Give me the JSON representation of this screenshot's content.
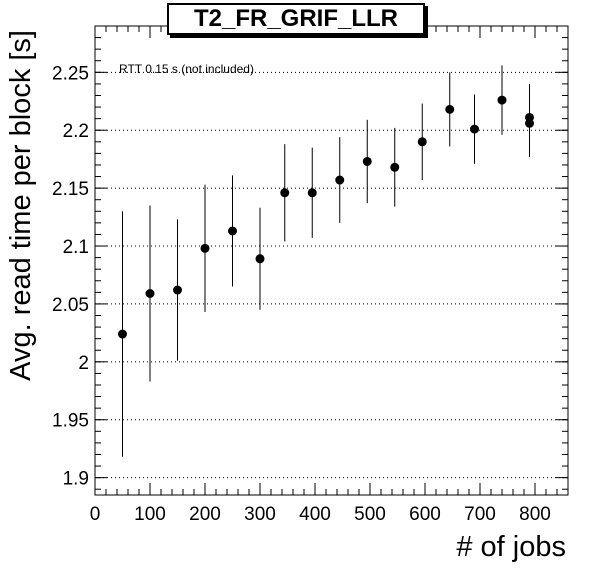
{
  "chart_data": {
    "type": "scatter",
    "title": "T2_FR_GRIF_LLR",
    "xlabel": "# of jobs",
    "ylabel": "Avg. read time per block [s]",
    "annotation": "RTT 0.15 s (not included)",
    "xlim": [
      0,
      860
    ],
    "ylim": [
      1.885,
      2.29
    ],
    "xticks": [
      0,
      100,
      200,
      300,
      400,
      500,
      600,
      700,
      800
    ],
    "yticks": [
      1.9,
      1.95,
      2,
      2.05,
      2.1,
      2.15,
      2.2,
      2.25
    ],
    "ytick_labels": [
      "1.9",
      "1.95",
      "2",
      "2.05",
      "2.1",
      "2.15",
      "2.2",
      "2.25"
    ],
    "grid": "horizontal dotted",
    "points": [
      {
        "x": 50,
        "y": 2.024,
        "err": 0.106
      },
      {
        "x": 100,
        "y": 2.059,
        "err": 0.076
      },
      {
        "x": 150,
        "y": 2.062,
        "err": 0.061
      },
      {
        "x": 200,
        "y": 2.098,
        "err": 0.055
      },
      {
        "x": 250,
        "y": 2.113,
        "err": 0.048
      },
      {
        "x": 300,
        "y": 2.089,
        "err": 0.044
      },
      {
        "x": 345,
        "y": 2.146,
        "err": 0.042
      },
      {
        "x": 395,
        "y": 2.146,
        "err": 0.039
      },
      {
        "x": 445,
        "y": 2.157,
        "err": 0.037
      },
      {
        "x": 495,
        "y": 2.173,
        "err": 0.036
      },
      {
        "x": 545,
        "y": 2.168,
        "err": 0.034
      },
      {
        "x": 595,
        "y": 2.19,
        "err": 0.033
      },
      {
        "x": 645,
        "y": 2.218,
        "err": 0.032
      },
      {
        "x": 690,
        "y": 2.201,
        "err": 0.03
      },
      {
        "x": 740,
        "y": 2.226,
        "err": 0.03
      },
      {
        "x": 790,
        "y": 2.211,
        "err": 0.029
      },
      {
        "x": 790,
        "y": 2.206,
        "err": 0.029
      }
    ]
  }
}
